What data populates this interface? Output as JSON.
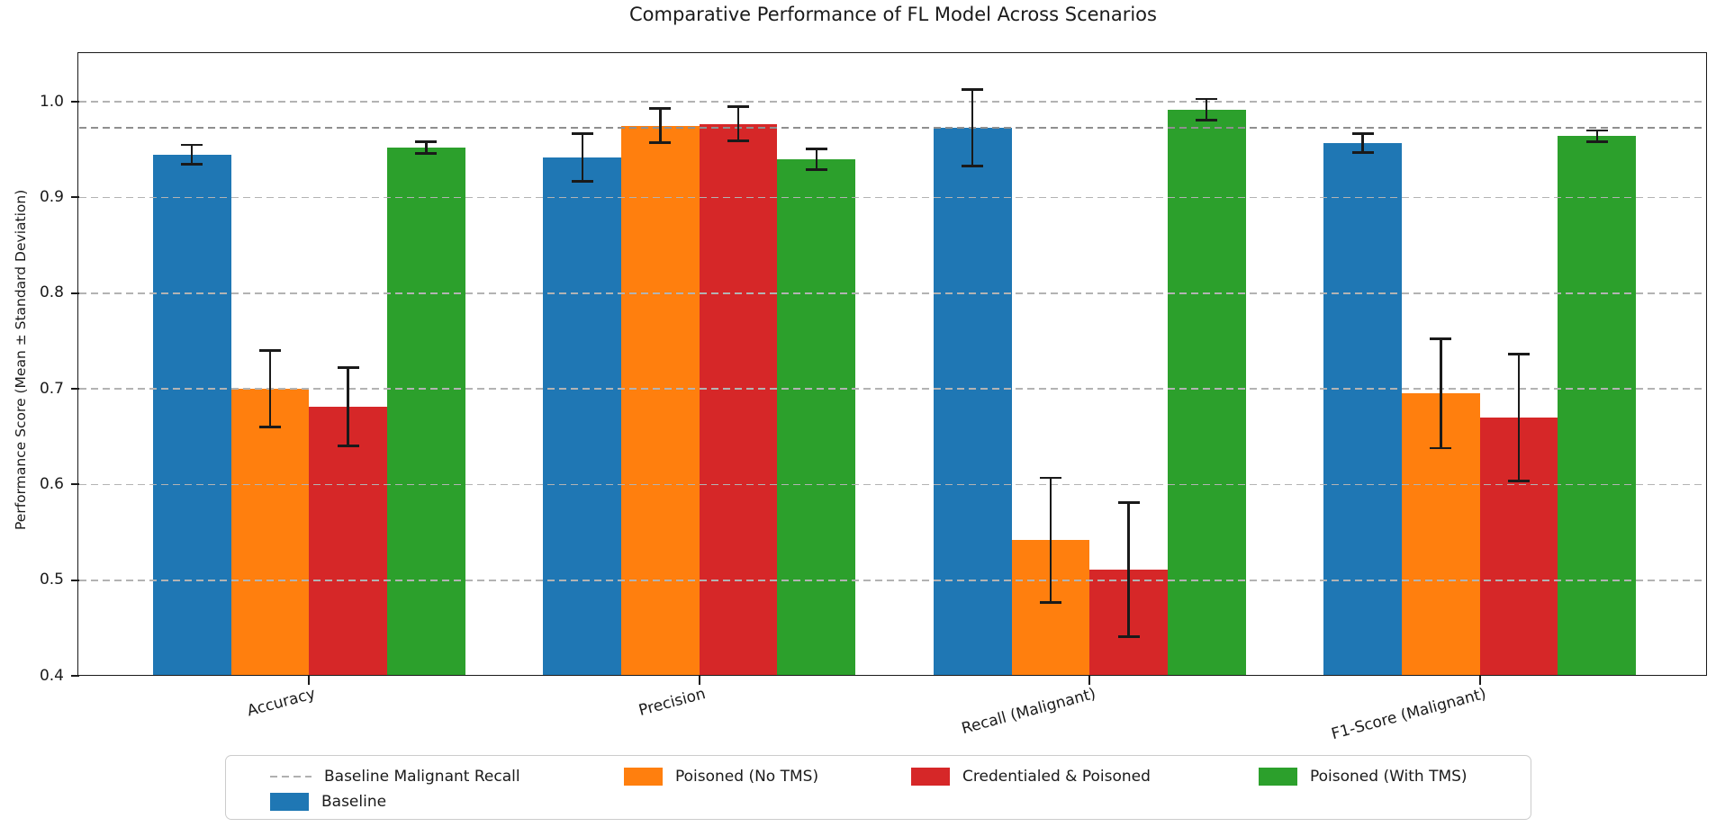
{
  "chart_data": {
    "type": "bar",
    "title": "Comparative Performance of FL Model Across Scenarios",
    "xlabel": "",
    "ylabel": "Performance Score (Mean ± Standard Deviation)",
    "categories": [
      "Accuracy",
      "Precision",
      "Recall (Malignant)",
      "F1-Score (Malignant)"
    ],
    "ylim": [
      0.4,
      1.05
    ],
    "yticks": [
      0.4,
      0.5,
      0.6,
      0.7,
      0.8,
      0.9,
      1.0
    ],
    "grid": "horizontal dashed gridlines, drawn over bars",
    "legend_position": "bottom",
    "bar_width_units": 0.2,
    "series": [
      {
        "name": "Baseline",
        "color": "#1f77b4",
        "values": [
          0.945,
          0.942,
          0.973,
          0.957
        ],
        "errors": [
          0.01,
          0.025,
          0.04,
          0.01
        ]
      },
      {
        "name": "Poisoned (No TMS)",
        "color": "#ff7f0e",
        "values": [
          0.7,
          0.975,
          0.542,
          0.695
        ],
        "errors": [
          0.04,
          0.018,
          0.065,
          0.057
        ]
      },
      {
        "name": "Credentialed & Poisoned",
        "color": "#d62728",
        "values": [
          0.681,
          0.977,
          0.511,
          0.67
        ],
        "errors": [
          0.041,
          0.018,
          0.07,
          0.066
        ]
      },
      {
        "name": "Poisoned (With TMS)",
        "color": "#2ca02c",
        "values": [
          0.952,
          0.94,
          0.992,
          0.964
        ],
        "errors": [
          0.006,
          0.011,
          0.011,
          0.006
        ]
      }
    ],
    "reference_line": {
      "label": "Baseline Malignant Recall",
      "value": 0.973,
      "style": "dashed",
      "color": "#8f8f8f"
    },
    "legend_entries": [
      "Baseline Malignant Recall",
      "Baseline",
      "Poisoned (No TMS)",
      "Credentialed & Poisoned",
      "Poisoned (With TMS)"
    ],
    "error_bar_color": "#1a1a1a"
  }
}
